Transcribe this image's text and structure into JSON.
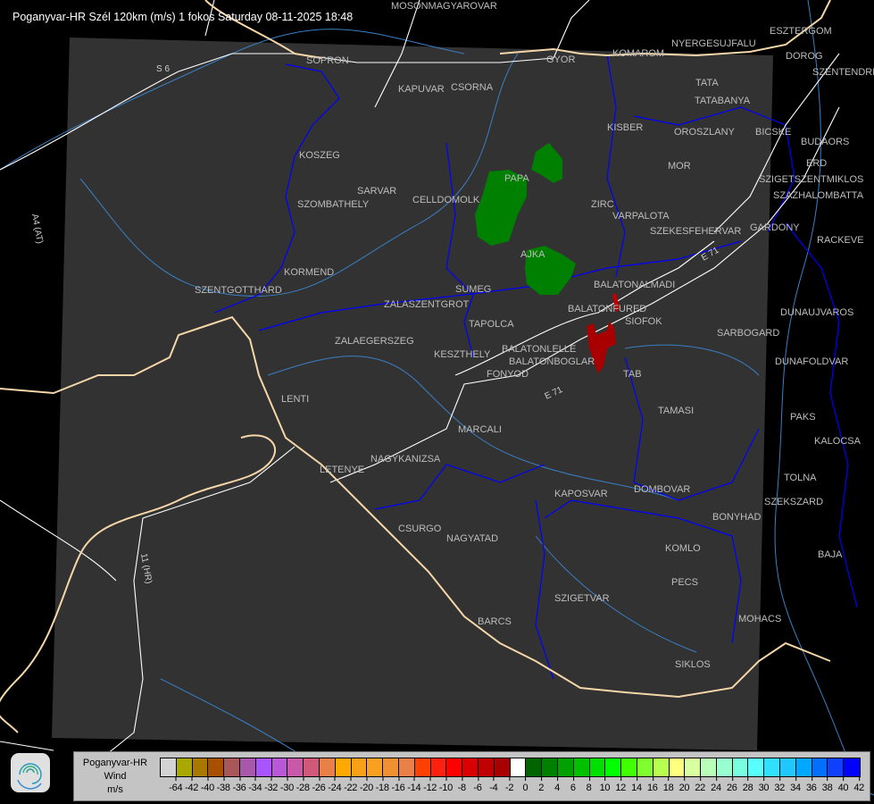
{
  "header": {
    "title": "Poganyvar-HR Szél 120km (m/s) 1 fokos Saturday 08-11-2025 18:48"
  },
  "map": {
    "background_color": "#000000",
    "coverage_color": "#323232",
    "border_color": "#f5d6a8",
    "county_color": "#0000ff",
    "river_color": "#3a7fc4",
    "road_color": "#ffffff",
    "cities": [
      "MOSONMAGYAROVAR",
      "SOPRON",
      "KAPUVAR",
      "CSORNA",
      "GYOR",
      "KOMAROM",
      "ESZTERGOM",
      "NYERGESUJFALU",
      "DOROG",
      "SZENTENDRE",
      "TATA",
      "TATABANYA",
      "KISBER",
      "OROSZLANY",
      "BICSKE",
      "BUDAORS",
      "MOR",
      "ERD",
      "SZIGETSZENTMIKLOS",
      "SZAZHALOMBATTA",
      "KOSZEG",
      "PAPA",
      "SZOMBATHELY",
      "SARVAR",
      "CELLDOMOLK",
      "ZIRC",
      "VARPALOTA",
      "SZEKESFEHERVAR",
      "GARDONY",
      "RACKEVE",
      "AJKA",
      "KORMEND",
      "SZENTGOTTHARD",
      "BALATONALMADI",
      "SUMEG",
      "ZALASZENTGROT",
      "BALATONFURED",
      "SIOFOK",
      "DUNAUJVAROS",
      "TAPOLCA",
      "SARBOGARD",
      "ZALAEGERSZEG",
      "KESZTHELY",
      "BALATONLELLE",
      "BALATONBOGLAR",
      "FONYOD",
      "TAB",
      "DUNAFOLDVAR",
      "TAMASI",
      "PAKS",
      "LENTI",
      "MARCALI",
      "KALOCSA",
      "NAGYKANIZSA",
      "LETENYE",
      "TOLNA",
      "KAPOSVAR",
      "DOMBOVAR",
      "SZEKSZARD",
      "BONYHAD",
      "CSURGO",
      "NAGYATAD",
      "KOMLO",
      "BAJA",
      "PECS",
      "SZIGETVAR",
      "MOHACS",
      "BARCS",
      "SIKLOS"
    ],
    "road_labels": [
      "S 6",
      "A4 (AT)",
      "11 (HR)",
      "E 71",
      "E 71"
    ]
  },
  "legend": {
    "title_lines": [
      "Poganyvar-HR",
      "Wind",
      "m/s"
    ],
    "colors": [
      "#d3d3d3",
      "#a8a800",
      "#a87800",
      "#a85000",
      "#a85858",
      "#a858a8",
      "#a855ff",
      "#b858d8",
      "#c858a8",
      "#d05878",
      "#e88048",
      "#ffa800",
      "#f8a018",
      "#f8a020",
      "#f09030",
      "#e88048",
      "#ff4000",
      "#ff2010",
      "#ff0000",
      "#d80000",
      "#c00000",
      "#a80000",
      "#ffffff",
      "#006400",
      "#008000",
      "#00a000",
      "#00c000",
      "#00e000",
      "#00ff00",
      "#40ff00",
      "#80ff30",
      "#b8ff50",
      "#ffff80",
      "#d8ffa0",
      "#b8ffb8",
      "#98ffd0",
      "#78ffe0",
      "#58ffff",
      "#30e0ff",
      "#20c8ff",
      "#00a8ff",
      "#0070ff",
      "#1040ff",
      "#0000ff"
    ],
    "labels": [
      "-64",
      "-42",
      "-40",
      "-38",
      "-36",
      "-34",
      "-32",
      "-30",
      "-28",
      "-26",
      "-24",
      "-22",
      "-20",
      "-18",
      "-16",
      "-14",
      "-12",
      "-10",
      "-8",
      "-6",
      "-4",
      "-2",
      "0",
      "2",
      "4",
      "6",
      "8",
      "10",
      "12",
      "14",
      "16",
      "18",
      "20",
      "22",
      "24",
      "26",
      "28",
      "30",
      "32",
      "34",
      "36",
      "38",
      "40",
      "42"
    ]
  }
}
